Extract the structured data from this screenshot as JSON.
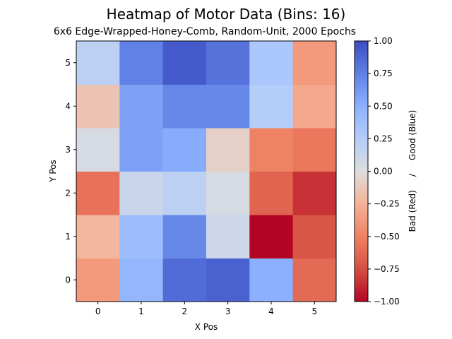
{
  "chart_data": {
    "type": "heatmap",
    "title": "Heatmap of Motor Data (Bins: 16)",
    "subtitle": "6x6 Edge-Wrapped-Honey-Comb, Random-Unit, 2000 Epochs",
    "xlabel": "X Pos",
    "ylabel": "Y Pos",
    "x_ticks": [
      "0",
      "1",
      "2",
      "3",
      "4",
      "5"
    ],
    "y_ticks": [
      "0",
      "1",
      "2",
      "3",
      "4",
      "5"
    ],
    "colormap": "coolwarm",
    "color_range": [
      -1.0,
      1.0
    ],
    "colorbar_label": "Bad (Red)     /     Good (Blue)",
    "colorbar_ticks": [
      "−1.00",
      "−0.75",
      "−0.50",
      "−0.25",
      "0.00",
      "0.25",
      "0.50",
      "0.75",
      "1.00"
    ],
    "values": [
      [
        -0.38,
        0.45,
        0.85,
        0.9,
        0.5,
        -0.62
      ],
      [
        -0.22,
        0.4,
        0.72,
        0.1,
        -1.0,
        -0.72
      ],
      [
        -0.58,
        0.12,
        0.2,
        0.05,
        -0.65,
        -0.85
      ],
      [
        0.05,
        0.58,
        0.52,
        -0.08,
        -0.5,
        -0.55
      ],
      [
        -0.15,
        0.58,
        0.72,
        0.72,
        0.25,
        -0.3
      ],
      [
        0.2,
        0.75,
        0.93,
        0.82,
        0.3,
        -0.38
      ]
    ]
  }
}
